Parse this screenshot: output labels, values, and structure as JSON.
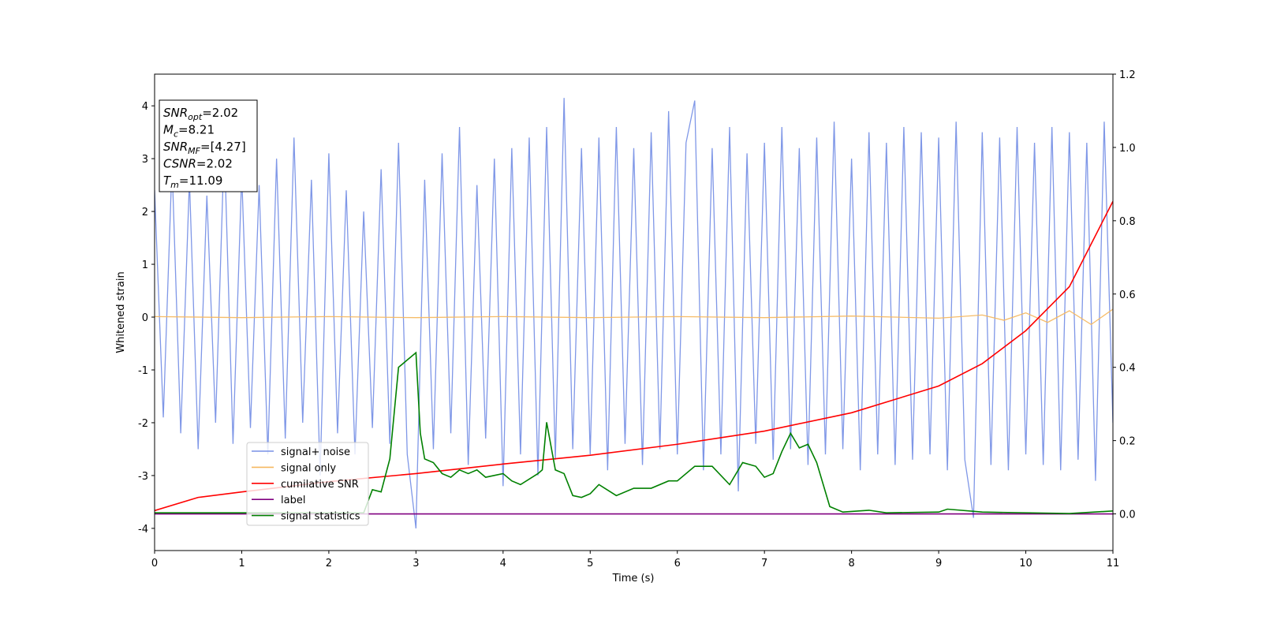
{
  "chart_data": {
    "type": "line",
    "xlabel": "Time (s)",
    "ylabel": "Whitened strain",
    "xlim": [
      0,
      11
    ],
    "xticks": [
      0,
      1,
      2,
      3,
      4,
      5,
      6,
      7,
      8,
      9,
      10,
      11
    ],
    "ylim": [
      -4.42,
      4.6
    ],
    "yticks": [
      -4,
      -3,
      -2,
      -1,
      0,
      1,
      2,
      3,
      4
    ],
    "y2lim": [
      -0.1,
      1.2
    ],
    "y2ticks": [
      {
        "value": 0,
        "label": "0.0"
      },
      {
        "value": 0.2,
        "label": "0.2"
      },
      {
        "value": 0.4,
        "label": "0.4"
      },
      {
        "value": 0.6,
        "label": "0.6"
      },
      {
        "value": 0.8,
        "label": "0.8"
      },
      {
        "value": 1,
        "label": "1.0"
      },
      {
        "value": 1.2,
        "label": "1.2"
      }
    ],
    "legend_loc": "lower left",
    "annotation": [
      {
        "base": "SNR",
        "sub": "opt",
        "text": "=2.02"
      },
      {
        "base": "M",
        "sub": "c",
        "text": "=8.21"
      },
      {
        "base": "SNR",
        "sub": "MF",
        "text": "=[4.27]"
      },
      {
        "base": "CSNR",
        "sub": null,
        "text": "=2.02"
      },
      {
        "base": "T",
        "sub": "m",
        "text": "=11.09"
      }
    ],
    "series": [
      {
        "name": "signal+ noise",
        "color": "#7891e6",
        "axis": "y",
        "x": [
          0,
          0.1,
          0.2,
          0.3,
          0.4,
          0.5,
          0.6,
          0.7,
          0.8,
          0.9,
          1,
          1.1,
          1.2,
          1.3,
          1.4,
          1.5,
          1.6,
          1.7,
          1.8,
          1.9,
          2,
          2.1,
          2.2,
          2.3,
          2.4,
          2.5,
          2.6,
          2.7,
          2.8,
          2.9,
          3,
          3.1,
          3.2,
          3.3,
          3.4,
          3.5,
          3.6,
          3.7,
          3.8,
          3.9,
          4,
          4.1,
          4.2,
          4.3,
          4.4,
          4.5,
          4.6,
          4.7,
          4.8,
          4.9,
          5,
          5.1,
          5.2,
          5.3,
          5.4,
          5.5,
          5.6,
          5.7,
          5.8,
          5.9,
          6,
          6.1,
          6.2,
          6.3,
          6.4,
          6.5,
          6.6,
          6.7,
          6.8,
          6.9,
          7,
          7.1,
          7.2,
          7.3,
          7.4,
          7.5,
          7.6,
          7.7,
          7.8,
          7.9,
          8,
          8.1,
          8.2,
          8.3,
          8.4,
          8.5,
          8.6,
          8.7,
          8.8,
          8.9,
          9,
          9.1,
          9.2,
          9.3,
          9.4,
          9.5,
          9.6,
          9.7,
          9.8,
          9.9,
          10,
          10.1,
          10.2,
          10.3,
          10.4,
          10.5,
          10.6,
          10.7,
          10.8,
          10.9,
          11
        ],
        "values": [
          2.4,
          -1.9,
          2.9,
          -2.2,
          2.6,
          -2.5,
          2.3,
          -2.0,
          3.3,
          -2.4,
          2.7,
          -2.1,
          2.5,
          -2.6,
          3.0,
          -2.3,
          3.4,
          -2.0,
          2.6,
          -3.0,
          3.1,
          -2.2,
          2.4,
          -2.6,
          2.0,
          -2.1,
          2.8,
          -2.4,
          3.3,
          -2.6,
          -4.0,
          2.6,
          -2.5,
          3.1,
          -2.2,
          3.6,
          -2.8,
          2.5,
          -2.3,
          3.0,
          -3.2,
          3.2,
          -2.6,
          3.4,
          -3.0,
          3.6,
          -2.7,
          4.15,
          -2.5,
          3.2,
          -2.6,
          3.4,
          -2.9,
          3.6,
          -2.4,
          3.2,
          -2.8,
          3.5,
          -2.5,
          3.9,
          -2.6,
          3.3,
          4.1,
          -2.9,
          3.2,
          -2.6,
          3.6,
          -3.3,
          3.1,
          -2.4,
          3.3,
          -2.7,
          3.6,
          -2.5,
          3.2,
          -2.8,
          3.4,
          -2.6,
          3.7,
          -2.5,
          3.0,
          -2.9,
          3.5,
          -2.6,
          3.3,
          -2.8,
          3.6,
          -2.7,
          3.5,
          -2.6,
          3.4,
          -2.9,
          3.7,
          -2.7,
          -3.8,
          3.5,
          -2.8,
          3.4,
          -2.9,
          3.6,
          -2.6,
          3.3,
          -2.8,
          3.6,
          -2.9,
          3.5,
          -2.7,
          3.3,
          -3.1,
          3.7,
          -2.0
        ]
      },
      {
        "name": "signal only",
        "color": "#f5b860",
        "axis": "y",
        "x": [
          0,
          1,
          2,
          3,
          4,
          5,
          6,
          7,
          8,
          9,
          9.5,
          9.75,
          10,
          10.25,
          10.5,
          10.75,
          11
        ],
        "values": [
          0.01,
          -0.01,
          0.01,
          -0.01,
          0.01,
          -0.01,
          0.01,
          -0.01,
          0.02,
          -0.02,
          0.04,
          -0.06,
          0.08,
          -0.1,
          0.12,
          -0.14,
          0.15
        ]
      },
      {
        "name": "cumilative SNR",
        "color": "#ff0000",
        "axis": "y2",
        "x": [
          0,
          0.5,
          1,
          2,
          3,
          4,
          5,
          6,
          7,
          8,
          9,
          9.5,
          10,
          10.5,
          11
        ],
        "values": [
          0.009,
          0.045,
          0.06,
          0.088,
          0.11,
          0.136,
          0.16,
          0.19,
          0.226,
          0.276,
          0.349,
          0.41,
          0.5,
          0.62,
          0.853
        ]
      },
      {
        "name": "label",
        "color": "#800080",
        "axis": "y2",
        "x": [
          0,
          11
        ],
        "values": [
          0,
          0
        ]
      },
      {
        "name": "signal statistics",
        "color": "#008000",
        "axis": "y2",
        "x": [
          0,
          2.4,
          2.5,
          2.6,
          2.7,
          2.8,
          2.9,
          3.0,
          3.05,
          3.1,
          3.2,
          3.3,
          3.4,
          3.5,
          3.6,
          3.7,
          3.8,
          4.0,
          4.1,
          4.2,
          4.4,
          4.45,
          4.5,
          4.6,
          4.7,
          4.8,
          4.9,
          5.0,
          5.1,
          5.3,
          5.5,
          5.7,
          5.9,
          6.0,
          6.2,
          6.4,
          6.6,
          6.75,
          6.9,
          7.0,
          7.1,
          7.2,
          7.3,
          7.4,
          7.5,
          7.6,
          7.75,
          7.9,
          8.2,
          8.4,
          9.0,
          9.1,
          9.5,
          10.5,
          11
        ],
        "values": [
          0.003,
          0.003,
          0.066,
          0.06,
          0.15,
          0.4,
          0.42,
          0.44,
          0.22,
          0.15,
          0.14,
          0.11,
          0.1,
          0.12,
          0.11,
          0.12,
          0.1,
          0.11,
          0.09,
          0.08,
          0.11,
          0.12,
          0.25,
          0.12,
          0.11,
          0.05,
          0.045,
          0.055,
          0.08,
          0.05,
          0.07,
          0.07,
          0.09,
          0.09,
          0.13,
          0.13,
          0.08,
          0.14,
          0.13,
          0.1,
          0.11,
          0.17,
          0.22,
          0.18,
          0.19,
          0.14,
          0.02,
          0.005,
          0.01,
          0.003,
          0.005,
          0.013,
          0.005,
          0.001,
          0.008
        ]
      }
    ]
  }
}
